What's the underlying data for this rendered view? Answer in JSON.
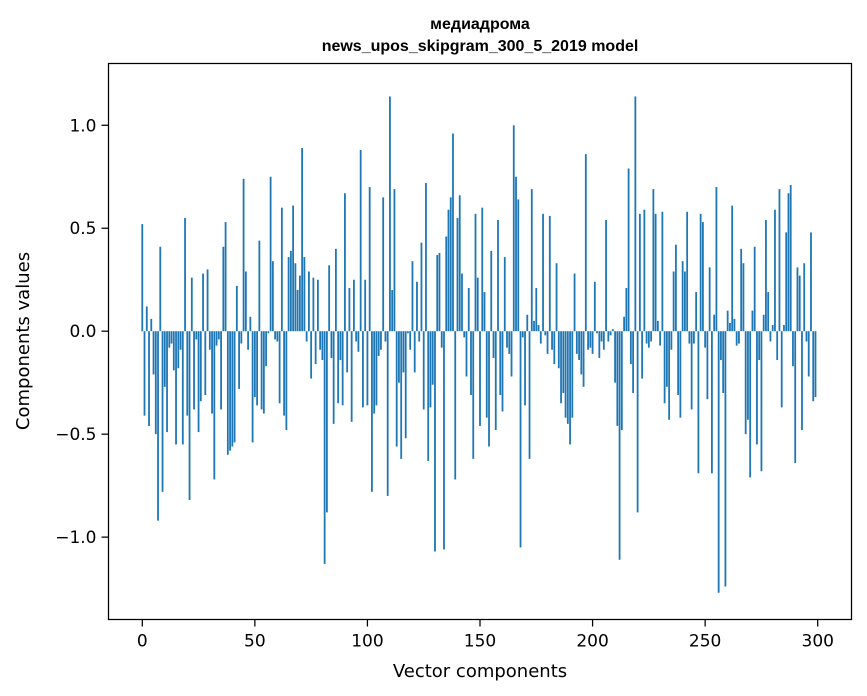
{
  "chart_data": {
    "type": "bar",
    "title_lines": [
      "медиадрома",
      "news_upos_skipgram_300_5_2019 model"
    ],
    "xlabel": "Vector components",
    "ylabel": "Components values",
    "xlim": [
      -15,
      315
    ],
    "ylim": [
      -1.4,
      1.3
    ],
    "xticks": [
      0,
      50,
      100,
      150,
      200,
      250,
      300
    ],
    "xtick_labels": [
      "0",
      "50",
      "100",
      "150",
      "200",
      "250",
      "300"
    ],
    "yticks": [
      -1.0,
      -0.5,
      0.0,
      0.5,
      1.0
    ],
    "ytick_labels": [
      "−1.0",
      "−0.5",
      "0.0",
      "0.5",
      "1.0"
    ],
    "grid": false,
    "bar_color": "#1f77b4",
    "series": [
      {
        "name": "components",
        "values": [
          0.52,
          -0.41,
          0.12,
          -0.46,
          0.06,
          -0.21,
          -0.5,
          -0.92,
          0.41,
          -0.78,
          -0.27,
          -0.49,
          -0.08,
          -0.06,
          -0.19,
          -0.55,
          -0.18,
          -0.09,
          -0.55,
          0.55,
          -0.41,
          -0.82,
          0.26,
          -0.38,
          -0.04,
          -0.49,
          -0.34,
          0.28,
          -0.31,
          0.3,
          -0.09,
          -0.4,
          -0.72,
          -0.07,
          -0.04,
          -0.38,
          0.41,
          0.53,
          -0.6,
          -0.58,
          -0.56,
          -0.54,
          0.22,
          -0.28,
          -0.06,
          0.74,
          0.29,
          -0.09,
          0.07,
          -0.54,
          -0.32,
          -0.36,
          0.44,
          -0.38,
          -0.4,
          -0.17,
          -0.01,
          0.75,
          0.34,
          -0.04,
          -0.05,
          -0.35,
          0.6,
          -0.41,
          -0.48,
          0.36,
          0.39,
          0.61,
          0.33,
          0.2,
          0.27,
          0.89,
          0.36,
          -0.05,
          0.29,
          -0.23,
          0.26,
          -0.16,
          0.25,
          -0.09,
          -0.14,
          -1.13,
          -0.88,
          0.32,
          -0.13,
          -0.45,
          0.4,
          -0.35,
          -0.14,
          -0.36,
          0.67,
          -0.2,
          0.21,
          -0.44,
          0.25,
          -0.05,
          -0.1,
          0.88,
          -0.37,
          0.25,
          -0.36,
          0.7,
          -0.78,
          -0.4,
          -0.36,
          -0.12,
          -0.09,
          0.65,
          -0.05,
          -0.8,
          1.14,
          0.2,
          0.69,
          -0.56,
          -0.25,
          -0.62,
          -0.2,
          -0.52,
          -0.01,
          -0.09,
          0.34,
          -0.2,
          0.24,
          -0.05,
          0.43,
          -0.38,
          0.72,
          -0.63,
          -0.37,
          -0.26,
          -1.07,
          0.37,
          0.38,
          -0.08,
          -1.06,
          0.46,
          0.59,
          0.65,
          0.96,
          -0.72,
          0.55,
          0.66,
          0.28,
          -0.03,
          -0.22,
          0.21,
          -0.31,
          -0.62,
          0.57,
          0.26,
          -0.46,
          0.6,
          0.19,
          -0.42,
          -0.56,
          0.39,
          -0.13,
          -0.48,
          0.54,
          -0.31,
          -0.39,
          0.36,
          -0.08,
          -0.11,
          -0.22,
          1.0,
          0.75,
          0.64,
          -1.05,
          -0.03,
          -0.36,
          0.08,
          -0.62,
          0.69,
          0.05,
          0.21,
          0.03,
          -0.06,
          0.57,
          -0.02,
          -0.11,
          0.56,
          -0.09,
          -0.16,
          0.33,
          -0.18,
          -0.35,
          -0.3,
          -0.42,
          -0.45,
          -0.55,
          -0.42,
          0.28,
          -0.11,
          -0.14,
          -0.21,
          -0.27,
          0.86,
          -0.09,
          -0.08,
          -0.11,
          0.24,
          -0.01,
          -0.13,
          -0.05,
          -0.09,
          0.54,
          -0.05,
          -0.02,
          0.01,
          -0.25,
          -0.46,
          -1.11,
          -0.48,
          0.07,
          0.21,
          0.79,
          -0.16,
          -0.3,
          1.14,
          -0.88,
          0.57,
          -0.23,
          0.59,
          -0.06,
          -0.08,
          -0.05,
          0.69,
          0.57,
          0.05,
          -0.07,
          0.58,
          -0.35,
          -0.27,
          -0.43,
          -0.09,
          0.29,
          0.42,
          -0.31,
          -0.42,
          0.34,
          0.29,
          0.58,
          -0.06,
          -0.38,
          -0.06,
          0.19,
          -0.69,
          0.57,
          0.53,
          -0.08,
          -0.33,
          0.31,
          -0.69,
          0.08,
          0.7,
          -1.27,
          -0.14,
          -0.3,
          -1.24,
          0.1,
          0.04,
          0.61,
          0.06,
          -0.07,
          -0.06,
          0.4,
          0.33,
          -0.5,
          -0.43,
          -0.71,
          0.1,
          0.41,
          -0.55,
          -0.14,
          -0.68,
          0.08,
          0.54,
          0.19,
          -0.05,
          0.03,
          0.59,
          -0.14,
          0.69,
          -0.37,
          0.03,
          0.48,
          0.67,
          0.71,
          -0.17,
          -0.64,
          0.31,
          0.27,
          -0.48,
          0.33,
          -0.05,
          -0.22,
          0.48,
          -0.34,
          -0.32
        ]
      }
    ]
  }
}
